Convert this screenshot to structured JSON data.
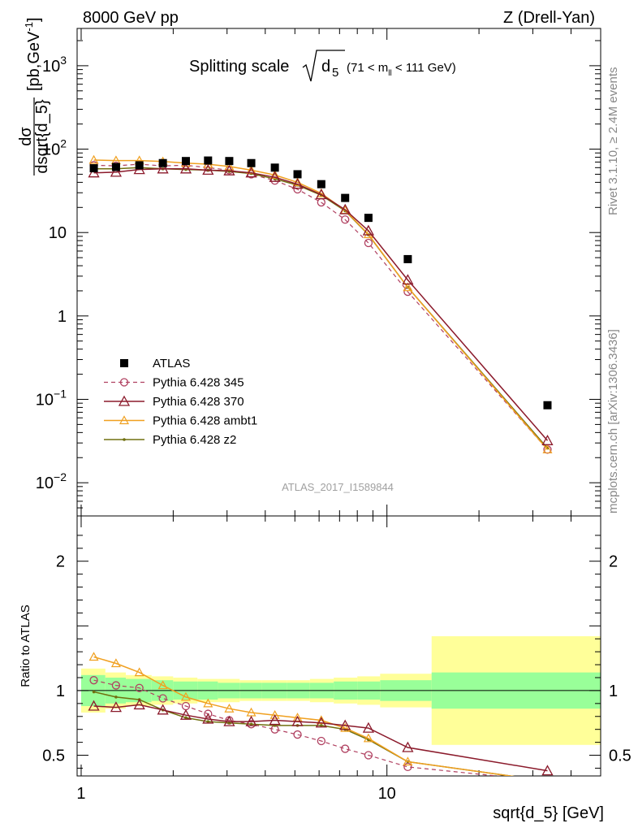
{
  "header": {
    "left_title": "8000 GeV pp",
    "right_title": "Z (Drell-Yan)"
  },
  "plot": {
    "title_main": "Splitting scale",
    "title_sym": "d",
    "title_sub": "5",
    "title_range": "(71 < m",
    "title_range_sub": "ll",
    "title_range_end": " < 111 GeV)",
    "ylabel_num": "dσ",
    "ylabel_den": "dsqrt{d_5}",
    "ylabel_unit": "[pb,GeV",
    "ylabel_unit_sup": "-1",
    "ylabel_unit_end": "]",
    "watermark": "ATLAS_2017_I1589844",
    "ratio_ylabel": "Ratio to ATLAS",
    "xlabel": "sqrt{d_5} [GeV]",
    "side_text_top": "Rivet 3.1.10, ≥ 2.4M events",
    "side_text_bottom": "mcplots.cern.ch [arXiv:1306.3436]"
  },
  "legend": [
    {
      "label": "ATLAS",
      "key": "atlas"
    },
    {
      "label": "Pythia 6.428 345",
      "key": "p345"
    },
    {
      "label": "Pythia 6.428 370",
      "key": "p370"
    },
    {
      "label": "Pythia 6.428 ambt1",
      "key": "ambt1"
    },
    {
      "label": "Pythia 6.428 z2",
      "key": "z2"
    }
  ],
  "chart_data": {
    "type": "line",
    "x_scale": "log",
    "y_scale": "log",
    "xlim": [
      0.97,
      50
    ],
    "ylim": [
      0.004,
      2800
    ],
    "ratio_ylim": [
      0.34,
      2.35
    ],
    "x_ticks": [
      {
        "v": 1,
        "label": "1"
      },
      {
        "v": 10,
        "label": "10"
      }
    ],
    "y_ticks": [
      {
        "v": 1000,
        "base": "10",
        "exp": "3"
      },
      {
        "v": 100,
        "base": "10",
        "exp": "2"
      },
      {
        "v": 10,
        "base": "10",
        "exp": ""
      },
      {
        "v": 1,
        "base": "1",
        "exp": ""
      },
      {
        "v": 0.1,
        "base": "10",
        "exp": "−1"
      },
      {
        "v": 0.01,
        "base": "10",
        "exp": "−2"
      }
    ],
    "ratio_ticks": [
      {
        "v": 2,
        "label": "2"
      },
      {
        "v": 1,
        "label": "1"
      },
      {
        "v": 0.5,
        "label": "0.5"
      }
    ],
    "x": [
      1.1,
      1.3,
      1.55,
      1.85,
      2.2,
      2.6,
      3.05,
      3.6,
      4.3,
      5.1,
      6.1,
      7.3,
      8.7,
      11.7,
      33.5
    ],
    "series": [
      {
        "name": "ATLAS",
        "key": "atlas",
        "color": "#000000",
        "values": [
          59,
          61,
          64,
          68,
          72,
          73,
          72,
          68,
          60,
          50,
          38,
          26,
          15,
          4.8,
          0.085
        ]
      },
      {
        "name": "Pythia 6.428 345",
        "key": "p345",
        "color": "#b04060",
        "values": [
          64,
          63,
          66,
          63,
          64,
          60,
          56,
          50,
          42,
          33,
          23,
          14.3,
          7.5,
          1.95,
          0.025
        ]
      },
      {
        "name": "Pythia 6.428 370",
        "key": "p370",
        "color": "#8b1a2b",
        "values": [
          52,
          53,
          57,
          58,
          58,
          56,
          55,
          52,
          46,
          38,
          28.5,
          18.8,
          10.5,
          2.7,
          0.032
        ]
      },
      {
        "name": "Pythia 6.428 ambt1",
        "key": "ambt1",
        "color": "#f0a020",
        "values": [
          74,
          73,
          73,
          71,
          68,
          66,
          62,
          56,
          49,
          40,
          29.5,
          18.5,
          9.5,
          2.2,
          0.025
        ]
      },
      {
        "name": "Pythia 6.428 z2",
        "key": "z2",
        "color": "#707010",
        "values": [
          58,
          58,
          60,
          58,
          57,
          56,
          54,
          51,
          44,
          37,
          28,
          18.2,
          9.4,
          2.2,
          0.026
        ]
      }
    ],
    "ratio_series": [
      {
        "key": "p345",
        "values": [
          1.08,
          1.04,
          1.02,
          0.94,
          0.88,
          0.82,
          0.77,
          0.74,
          0.7,
          0.66,
          0.61,
          0.55,
          0.5,
          0.41,
          0.3
        ]
      },
      {
        "key": "p370",
        "values": [
          0.88,
          0.87,
          0.89,
          0.85,
          0.81,
          0.78,
          0.76,
          0.76,
          0.77,
          0.76,
          0.75,
          0.73,
          0.71,
          0.56,
          0.38
        ]
      },
      {
        "key": "ambt1",
        "values": [
          1.26,
          1.21,
          1.14,
          1.04,
          0.95,
          0.9,
          0.86,
          0.83,
          0.81,
          0.79,
          0.77,
          0.71,
          0.63,
          0.45,
          0.3
        ]
      },
      {
        "key": "z2",
        "values": [
          0.99,
          0.95,
          0.93,
          0.85,
          0.79,
          0.76,
          0.75,
          0.74,
          0.73,
          0.73,
          0.73,
          0.7,
          0.62,
          0.45,
          0.3
        ]
      }
    ],
    "bands": {
      "edges": [
        1.0,
        1.2,
        1.4,
        1.7,
        2.0,
        2.4,
        2.8,
        3.3,
        3.9,
        4.7,
        5.6,
        6.7,
        8.0,
        9.5,
        14.0,
        50
      ],
      "green": [
        0.12,
        0.1,
        0.09,
        0.08,
        0.07,
        0.07,
        0.06,
        0.06,
        0.06,
        0.06,
        0.06,
        0.07,
        0.07,
        0.08,
        0.14
      ],
      "yellow": [
        0.17,
        0.14,
        0.12,
        0.11,
        0.1,
        0.09,
        0.09,
        0.08,
        0.08,
        0.08,
        0.09,
        0.1,
        0.11,
        0.13,
        0.42
      ]
    },
    "colors": {
      "green_band": "#99ff99",
      "yellow_band": "#ffff99"
    }
  }
}
